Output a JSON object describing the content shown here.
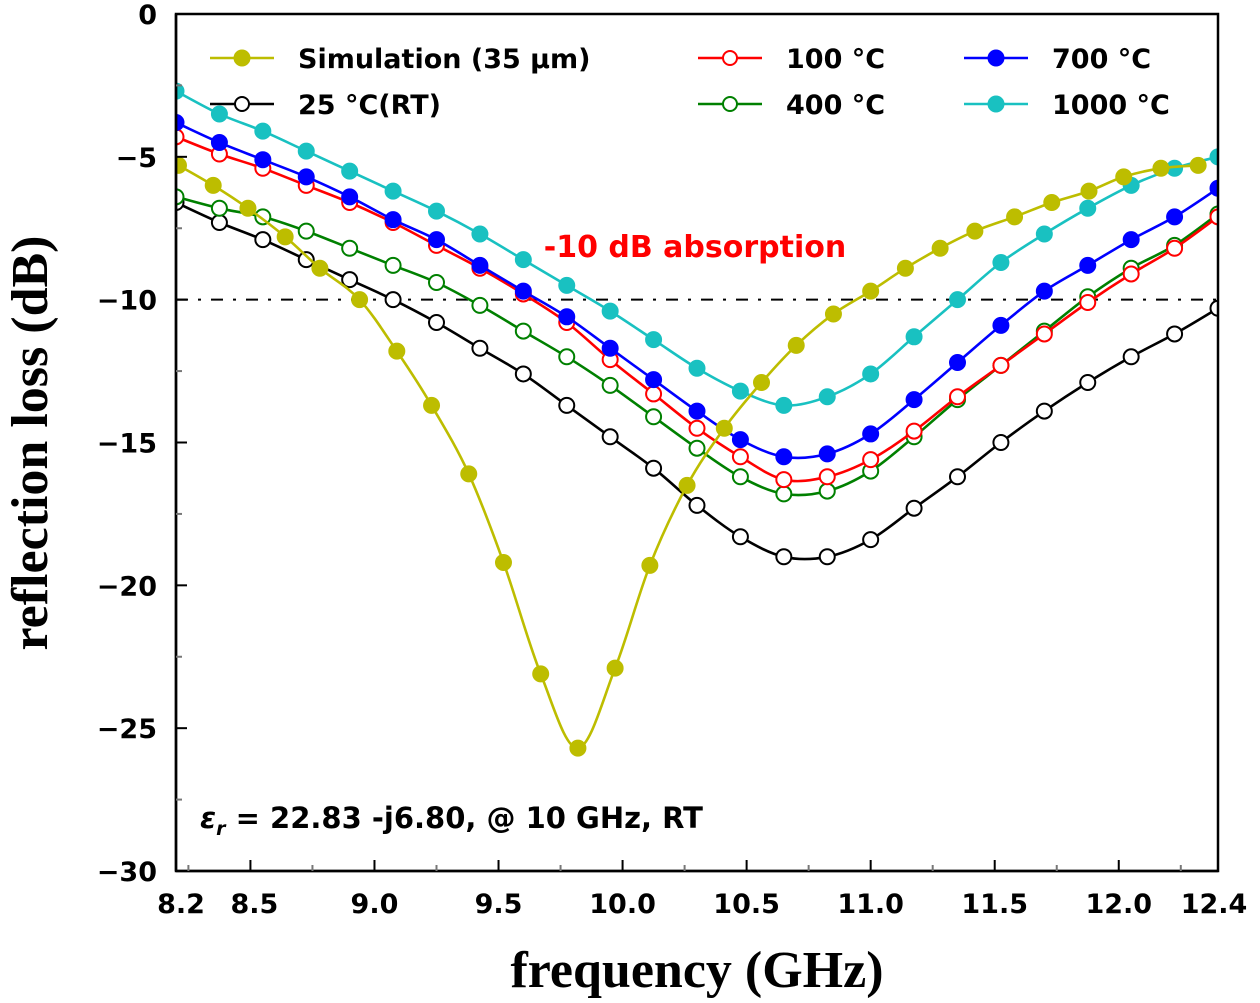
{
  "chart_data": {
    "type": "line",
    "title": "",
    "xlabel": "frequency (GHz)",
    "ylabel": "reflection loss (dB)",
    "xlim": [
      8.2,
      12.4
    ],
    "ylim": [
      -30,
      0
    ],
    "grid": false,
    "legend_position": "top",
    "x_ticks": [
      8.2,
      8.5,
      9.0,
      9.5,
      10.0,
      10.5,
      11.0,
      11.5,
      12.0,
      12.4
    ],
    "x_tick_labels": [
      "8.2",
      "8.5",
      "9.0",
      "9.5",
      "10.0",
      "10.5",
      "11.0",
      "11.5",
      "12.0",
      "12.4"
    ],
    "y_ticks": [
      0,
      -5,
      -10,
      -15,
      -20,
      -25,
      -30
    ],
    "y_tick_labels": [
      "0",
      "−5",
      "−10",
      "−15",
      "−20",
      "−25",
      "−30"
    ],
    "reference_line": {
      "y": -10,
      "style": "dash-dot",
      "color": "#000000"
    },
    "annotations": [
      {
        "text": "-10 dB absorption",
        "color": "#ff0000",
        "x": 10.0,
        "y": -8.0
      },
      {
        "text_symbol": "ε",
        "text_sub": "r",
        "text": " = 22.83 -j6.80, @ 10 GHz, RT",
        "color": "#000000",
        "x": 8.3,
        "y": -28.0
      }
    ],
    "series": [
      {
        "name": "Simulation (35 μm)",
        "color": "#bdbd00",
        "marker": "filled",
        "x": [
          8.21,
          8.35,
          8.49,
          8.64,
          8.78,
          8.94,
          9.09,
          9.23,
          9.38,
          9.52,
          9.67,
          9.82,
          9.97,
          10.11,
          10.26,
          10.41,
          10.56,
          10.7,
          10.85,
          11.0,
          11.14,
          11.28,
          11.42,
          11.58,
          11.73,
          11.88,
          12.02,
          12.17,
          12.32
        ],
        "values": [
          -5.3,
          -6.0,
          -6.8,
          -7.8,
          -8.9,
          -10.0,
          -11.8,
          -13.7,
          -16.1,
          -19.2,
          -23.1,
          -25.7,
          -22.9,
          -19.3,
          -16.5,
          -14.5,
          -12.9,
          -11.6,
          -10.5,
          -9.7,
          -8.9,
          -8.2,
          -7.6,
          -7.1,
          -6.6,
          -6.2,
          -5.7,
          -5.4,
          -5.3
        ]
      },
      {
        "name": "25 °C(RT)",
        "color": "#000000",
        "marker": "open",
        "x": [
          8.2,
          8.375,
          8.55,
          8.725,
          8.9,
          9.075,
          9.25,
          9.425,
          9.6,
          9.775,
          9.95,
          10.125,
          10.3,
          10.475,
          10.65,
          10.825,
          11.0,
          11.175,
          11.35,
          11.525,
          11.7,
          11.875,
          12.05,
          12.225,
          12.4
        ],
        "values": [
          -6.6,
          -7.3,
          -7.9,
          -8.6,
          -9.3,
          -10.0,
          -10.8,
          -11.7,
          -12.6,
          -13.7,
          -14.8,
          -15.9,
          -17.2,
          -18.3,
          -19.0,
          -19.0,
          -18.4,
          -17.3,
          -16.2,
          -15.0,
          -13.9,
          -12.9,
          -12.0,
          -11.2,
          -10.3
        ]
      },
      {
        "name": "100 °C",
        "color": "#ff0000",
        "marker": "open",
        "x": [
          8.2,
          8.375,
          8.55,
          8.725,
          8.9,
          9.075,
          9.25,
          9.425,
          9.6,
          9.775,
          9.95,
          10.125,
          10.3,
          10.475,
          10.65,
          10.825,
          11.0,
          11.175,
          11.35,
          11.525,
          11.7,
          11.875,
          12.05,
          12.225,
          12.4
        ],
        "values": [
          -4.3,
          -4.9,
          -5.4,
          -6.0,
          -6.6,
          -7.3,
          -8.1,
          -8.9,
          -9.8,
          -10.8,
          -12.1,
          -13.3,
          -14.5,
          -15.5,
          -16.3,
          -16.2,
          -15.6,
          -14.6,
          -13.4,
          -12.3,
          -11.2,
          -10.1,
          -9.1,
          -8.2,
          -7.1
        ]
      },
      {
        "name": "400 °C",
        "color": "#008000",
        "marker": "open",
        "x": [
          8.2,
          8.375,
          8.55,
          8.725,
          8.9,
          9.075,
          9.25,
          9.425,
          9.6,
          9.775,
          9.95,
          10.125,
          10.3,
          10.475,
          10.65,
          10.825,
          11.0,
          11.175,
          11.35,
          11.525,
          11.7,
          11.875,
          12.05,
          12.225,
          12.4
        ],
        "values": [
          -6.4,
          -6.8,
          -7.1,
          -7.6,
          -8.2,
          -8.8,
          -9.4,
          -10.2,
          -11.1,
          -12.0,
          -13.0,
          -14.1,
          -15.2,
          -16.2,
          -16.8,
          -16.7,
          -16.0,
          -14.8,
          -13.5,
          -12.3,
          -11.1,
          -9.9,
          -8.9,
          -8.1,
          -7.0
        ]
      },
      {
        "name": "700 °C",
        "color": "#0000ff",
        "marker": "filled",
        "x": [
          8.2,
          8.375,
          8.55,
          8.725,
          8.9,
          9.075,
          9.25,
          9.425,
          9.6,
          9.775,
          9.95,
          10.125,
          10.3,
          10.475,
          10.65,
          10.825,
          11.0,
          11.175,
          11.35,
          11.525,
          11.7,
          11.875,
          12.05,
          12.225,
          12.4
        ],
        "values": [
          -3.8,
          -4.5,
          -5.1,
          -5.7,
          -6.4,
          -7.2,
          -7.9,
          -8.8,
          -9.7,
          -10.6,
          -11.7,
          -12.8,
          -13.9,
          -14.9,
          -15.5,
          -15.4,
          -14.7,
          -13.5,
          -12.2,
          -10.9,
          -9.7,
          -8.8,
          -7.9,
          -7.1,
          -6.1
        ]
      },
      {
        "name": "1000 °C",
        "color": "#19c1c1",
        "marker": "filled",
        "x": [
          8.2,
          8.375,
          8.55,
          8.725,
          8.9,
          9.075,
          9.25,
          9.425,
          9.6,
          9.775,
          9.95,
          10.125,
          10.3,
          10.475,
          10.65,
          10.825,
          11.0,
          11.175,
          11.35,
          11.525,
          11.7,
          11.875,
          12.05,
          12.225,
          12.4
        ],
        "values": [
          -2.7,
          -3.5,
          -4.1,
          -4.8,
          -5.5,
          -6.2,
          -6.9,
          -7.7,
          -8.6,
          -9.5,
          -10.4,
          -11.4,
          -12.4,
          -13.2,
          -13.7,
          -13.4,
          -12.6,
          -11.3,
          -10.0,
          -8.7,
          -7.7,
          -6.8,
          -6.0,
          -5.4,
          -5.0
        ]
      }
    ],
    "legend": [
      {
        "series": 0,
        "label": "Simulation (35 μm)"
      },
      {
        "series": 1,
        "label": "25 °C(RT)"
      },
      {
        "series": 2,
        "label": "100 °C"
      },
      {
        "series": 3,
        "label": "400 °C"
      },
      {
        "series": 4,
        "label": "700 °C"
      },
      {
        "series": 5,
        "label": "1000 °C"
      }
    ]
  }
}
